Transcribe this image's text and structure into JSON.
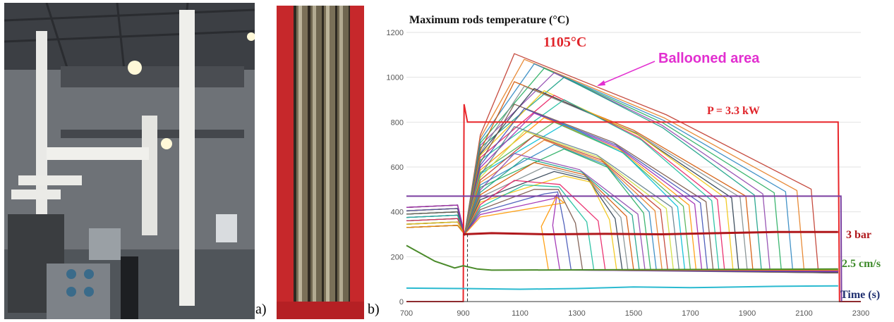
{
  "panels": {
    "a": "a)",
    "b": "b)"
  },
  "chart_data": {
    "type": "line",
    "title": "Maximum rods temperature (°C)",
    "xlabel": "Time (s)",
    "ylabel": "",
    "xlim": [
      700,
      2300
    ],
    "ylim": [
      0,
      1200
    ],
    "x_ticks": [
      700,
      900,
      1100,
      1300,
      1500,
      1700,
      1900,
      2100,
      2300
    ],
    "y_ticks": [
      0,
      200,
      400,
      600,
      800,
      1000,
      1200
    ],
    "grid": "horizontal",
    "annotations": {
      "peak": "1105°C",
      "ballooned": "Ballooned area",
      "power": "P = 3.3 kW",
      "pressure": "3 bar",
      "velocity": "2.5 cm/s"
    },
    "series_named": [
      {
        "name": "power",
        "color": "#e8262b",
        "points": [
          [
            700,
            0
          ],
          [
            900,
            0
          ],
          [
            903,
            880
          ],
          [
            915,
            800
          ],
          [
            2220,
            800
          ],
          [
            2225,
            0
          ],
          [
            2300,
            0
          ]
        ]
      },
      {
        "name": "purple level",
        "color": "#7b3fa0",
        "points": [
          [
            700,
            470
          ],
          [
            2230,
            470
          ],
          [
            2232,
            0
          ]
        ]
      },
      {
        "name": "pressure",
        "color": "#b0181c",
        "points": [
          [
            900,
            300
          ],
          [
            1000,
            305
          ],
          [
            1200,
            300
          ],
          [
            1400,
            302
          ],
          [
            1600,
            300
          ],
          [
            1800,
            305
          ],
          [
            2000,
            310
          ],
          [
            2150,
            310
          ],
          [
            2220,
            310
          ]
        ]
      },
      {
        "name": "cyan",
        "color": "#2bbad0",
        "points": [
          [
            700,
            60
          ],
          [
            900,
            58
          ],
          [
            1100,
            55
          ],
          [
            1300,
            58
          ],
          [
            1500,
            65
          ],
          [
            1700,
            62
          ],
          [
            2000,
            68
          ],
          [
            2220,
            70
          ]
        ]
      },
      {
        "name": "green velocity",
        "color": "#4a8a2a",
        "points": [
          [
            700,
            250
          ],
          [
            800,
            180
          ],
          [
            870,
            150
          ],
          [
            900,
            160
          ],
          [
            950,
            145
          ],
          [
            1000,
            140
          ],
          [
            2220,
            145
          ]
        ]
      }
    ],
    "rod_family": {
      "colors": [
        "#c0392b",
        "#e67e22",
        "#2e86c1",
        "#27ae60",
        "#8e44ad",
        "#16a085",
        "#d35400",
        "#7f8c8d",
        "#2c3e50",
        "#f1c40f",
        "#e91e63",
        "#1abc9c",
        "#795548",
        "#3f51b5",
        "#9c27b0",
        "#ff9800",
        "#4caf50",
        "#00bcd4",
        "#607d8b",
        "#cddc39"
      ],
      "peaks": [
        1105,
        1080,
        1060,
        1040,
        1020,
        1000,
        980,
        960,
        950,
        940,
        920,
        900,
        880,
        860,
        840,
        820,
        800,
        790,
        780,
        760,
        740,
        720,
        700,
        680,
        660,
        640,
        620,
        600,
        580,
        560,
        540,
        520,
        500,
        480,
        460,
        440
      ],
      "quench_times": [
        2150,
        2100,
        2060,
        2020,
        1980,
        1950,
        1920,
        1900,
        1870,
        1850,
        1820,
        1800,
        1780,
        1760,
        1740,
        1720,
        1700,
        1680,
        1660,
        1640,
        1620,
        1600,
        1580,
        1560,
        1540,
        1520,
        1500,
        1480,
        1460,
        1440,
        1400,
        1360,
        1320,
        1280,
        1240,
        1200
      ]
    }
  }
}
